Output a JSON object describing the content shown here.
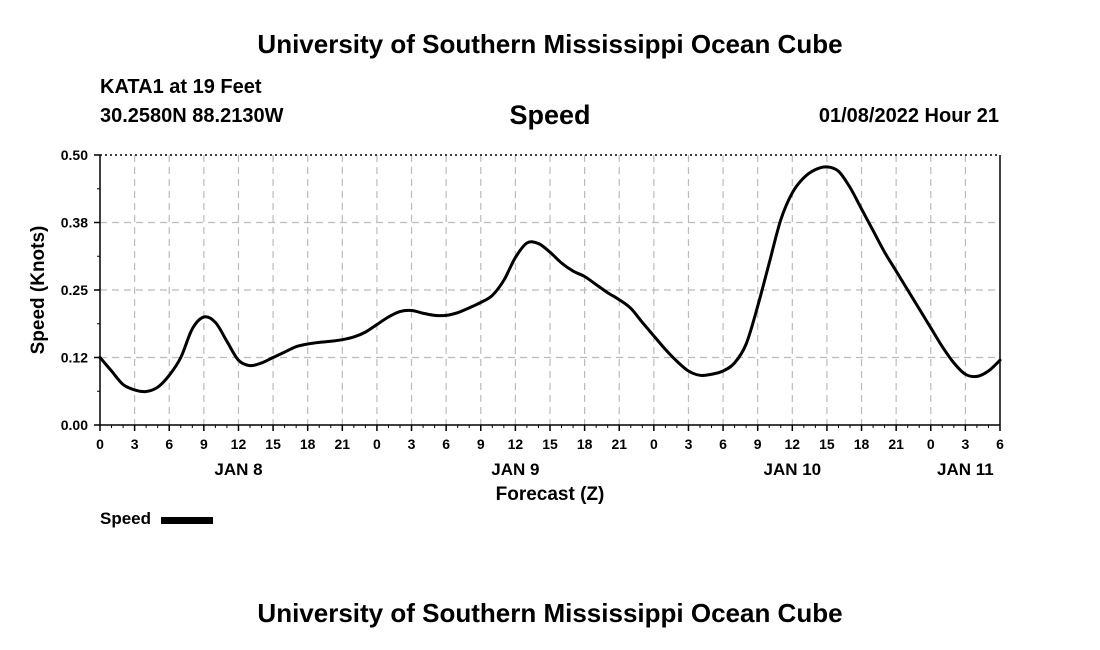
{
  "header": {
    "title": "University of Southern Mississippi Ocean Cube",
    "station": "KATA1 at 19 Feet",
    "coordinates": "30.2580N  88.2130W",
    "timestamp": "01/08/2022 Hour 21"
  },
  "footer": {
    "title": "University of Southern Mississippi Ocean Cube"
  },
  "chart_data": {
    "type": "line",
    "title": "Speed",
    "xlabel": "Forecast (Z)",
    "ylabel": "Speed (Knots)",
    "ylim": [
      0.0,
      0.5
    ],
    "xlim": [
      0,
      78
    ],
    "x_units": "hours since 2022-01-08 00Z",
    "y_ticks": [
      "0.00",
      "0.12",
      "0.25",
      "0.38",
      "0.50"
    ],
    "y_tick_values": [
      0.0,
      0.125,
      0.25,
      0.375,
      0.5
    ],
    "x_ticks": [
      "0",
      "3",
      "6",
      "9",
      "12",
      "15",
      "18",
      "21",
      "0",
      "3",
      "6",
      "9",
      "12",
      "15",
      "18",
      "21",
      "0",
      "3",
      "6",
      "9",
      "12",
      "15",
      "18",
      "21",
      "0",
      "3",
      "6"
    ],
    "date_labels": [
      {
        "label": "JAN 8",
        "x": 12
      },
      {
        "label": "JAN 9",
        "x": 36
      },
      {
        "label": "JAN 10",
        "x": 60
      },
      {
        "label": "JAN 11",
        "x": 75
      }
    ],
    "grid": true,
    "legend_position": "bottom-left",
    "series": [
      {
        "name": "Speed",
        "color": "#000000",
        "x": [
          0,
          1,
          2,
          3,
          4,
          5,
          6,
          7,
          8,
          9,
          10,
          11,
          12,
          13,
          14,
          15,
          16,
          17,
          18,
          19,
          20,
          21,
          22,
          23,
          24,
          25,
          26,
          27,
          28,
          29,
          30,
          31,
          32,
          33,
          34,
          35,
          36,
          37,
          38,
          39,
          40,
          41,
          42,
          43,
          44,
          45,
          46,
          47,
          48,
          49,
          50,
          51,
          52,
          53,
          54,
          55,
          56,
          57,
          58,
          59,
          60,
          61,
          62,
          63,
          64,
          65,
          66,
          67,
          68,
          69,
          70,
          71,
          72,
          73,
          74,
          75,
          76,
          77,
          78
        ],
        "values": [
          0.125,
          0.1,
          0.075,
          0.065,
          0.062,
          0.07,
          0.092,
          0.125,
          0.178,
          0.2,
          0.19,
          0.155,
          0.12,
          0.11,
          0.115,
          0.125,
          0.135,
          0.145,
          0.15,
          0.153,
          0.155,
          0.158,
          0.163,
          0.172,
          0.186,
          0.2,
          0.21,
          0.212,
          0.207,
          0.203,
          0.203,
          0.208,
          0.217,
          0.227,
          0.24,
          0.268,
          0.31,
          0.337,
          0.336,
          0.32,
          0.3,
          0.285,
          0.275,
          0.26,
          0.245,
          0.232,
          0.216,
          0.19,
          0.165,
          0.14,
          0.118,
          0.1,
          0.092,
          0.094,
          0.1,
          0.115,
          0.15,
          0.22,
          0.3,
          0.38,
          0.43,
          0.458,
          0.473,
          0.478,
          0.47,
          0.44,
          0.4,
          0.36,
          0.32,
          0.285,
          0.25,
          0.215,
          0.18,
          0.145,
          0.115,
          0.094,
          0.09,
          0.1,
          0.12
        ]
      }
    ]
  }
}
